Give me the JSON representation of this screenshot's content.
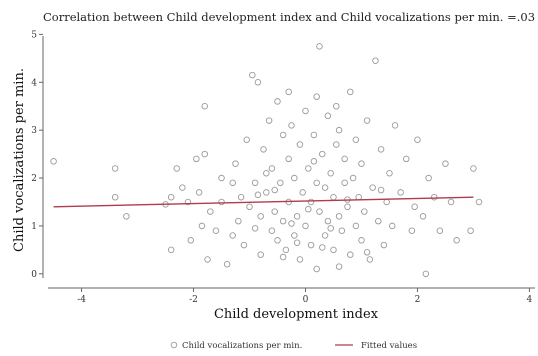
{
  "chart_data": {
    "type": "scatter",
    "title": "Correlation between Child development index and Child vocalizations per min. =.03",
    "xlabel": "Child development index",
    "ylabel": "Child vocalizations per min.",
    "xlim": [
      -4.6,
      4.1
    ],
    "ylim": [
      -0.15,
      5.05
    ],
    "x_ticks": [
      -4,
      -2,
      0,
      2,
      4
    ],
    "y_ticks": [
      0,
      1,
      2,
      3,
      4,
      5
    ],
    "grid": false,
    "legend_position": "bottom",
    "series": [
      {
        "name": "Child vocalizations per min.",
        "kind": "scatter",
        "marker": "hollow-circle",
        "color": "#9a9a9a",
        "points": [
          [
            -4.5,
            2.35
          ],
          [
            -3.4,
            1.6
          ],
          [
            -3.4,
            2.2
          ],
          [
            -3.2,
            1.2
          ],
          [
            -2.5,
            1.45
          ],
          [
            -2.4,
            1.6
          ],
          [
            -2.4,
            0.5
          ],
          [
            -2.3,
            2.2
          ],
          [
            -2.2,
            1.8
          ],
          [
            -2.1,
            1.5
          ],
          [
            -2.05,
            0.7
          ],
          [
            -1.95,
            2.4
          ],
          [
            -1.9,
            1.7
          ],
          [
            -1.85,
            1.0
          ],
          [
            -1.8,
            2.5
          ],
          [
            -1.8,
            3.5
          ],
          [
            -1.75,
            0.3
          ],
          [
            -1.7,
            1.3
          ],
          [
            -1.6,
            0.9
          ],
          [
            -1.5,
            2.0
          ],
          [
            -1.5,
            1.5
          ],
          [
            -1.4,
            0.2
          ],
          [
            -1.3,
            0.8
          ],
          [
            -1.25,
            2.3
          ],
          [
            -1.2,
            1.1
          ],
          [
            -1.15,
            1.6
          ],
          [
            -1.1,
            0.6
          ],
          [
            -1.05,
            2.8
          ],
          [
            -1.0,
            1.4
          ],
          [
            -0.95,
            4.15
          ],
          [
            -0.9,
            1.9
          ],
          [
            -0.85,
            4.0
          ],
          [
            -0.8,
            1.2
          ],
          [
            -0.8,
            0.4
          ],
          [
            -0.75,
            2.6
          ],
          [
            -0.7,
            1.7
          ],
          [
            -0.65,
            3.2
          ],
          [
            -0.6,
            0.9
          ],
          [
            -0.6,
            2.2
          ],
          [
            -0.55,
            1.3
          ],
          [
            -0.5,
            3.6
          ],
          [
            -0.5,
            0.7
          ],
          [
            -0.45,
            1.9
          ],
          [
            -0.4,
            2.9
          ],
          [
            -0.4,
            1.1
          ],
          [
            -0.35,
            0.5
          ],
          [
            -0.3,
            2.4
          ],
          [
            -0.3,
            1.5
          ],
          [
            -0.25,
            3.1
          ],
          [
            -0.2,
            0.8
          ],
          [
            -0.2,
            2.0
          ],
          [
            -0.15,
            1.2
          ],
          [
            -0.1,
            2.7
          ],
          [
            -0.1,
            0.3
          ],
          [
            -0.05,
            1.7
          ],
          [
            0.0,
            3.4
          ],
          [
            0.0,
            1.0
          ],
          [
            0.05,
            2.2
          ],
          [
            0.1,
            0.6
          ],
          [
            0.1,
            1.5
          ],
          [
            0.15,
            2.9
          ],
          [
            0.2,
            1.9
          ],
          [
            0.2,
            0.1
          ],
          [
            0.25,
            4.75
          ],
          [
            0.25,
            1.3
          ],
          [
            0.3,
            2.5
          ],
          [
            0.35,
            0.8
          ],
          [
            0.35,
            1.8
          ],
          [
            0.4,
            3.3
          ],
          [
            0.4,
            1.1
          ],
          [
            0.45,
            2.1
          ],
          [
            0.5,
            0.5
          ],
          [
            0.5,
            1.6
          ],
          [
            0.55,
            2.7
          ],
          [
            0.6,
            1.2
          ],
          [
            0.6,
            3.0
          ],
          [
            0.65,
            0.9
          ],
          [
            0.7,
            1.9
          ],
          [
            0.7,
            2.4
          ],
          [
            0.75,
            1.4
          ],
          [
            0.8,
            3.8
          ],
          [
            0.8,
            0.4
          ],
          [
            0.85,
            2.0
          ],
          [
            0.9,
            1.0
          ],
          [
            0.9,
            2.8
          ],
          [
            0.95,
            1.6
          ],
          [
            1.0,
            0.7
          ],
          [
            1.0,
            2.3
          ],
          [
            1.05,
            1.3
          ],
          [
            1.1,
            3.2
          ],
          [
            1.15,
            0.3
          ],
          [
            1.2,
            1.8
          ],
          [
            1.25,
            4.45
          ],
          [
            1.3,
            1.1
          ],
          [
            1.35,
            2.6
          ],
          [
            1.4,
            0.6
          ],
          [
            1.45,
            1.5
          ],
          [
            1.5,
            2.1
          ],
          [
            1.55,
            1.0
          ],
          [
            1.6,
            3.1
          ],
          [
            1.7,
            1.7
          ],
          [
            1.8,
            2.4
          ],
          [
            1.9,
            0.9
          ],
          [
            1.95,
            1.4
          ],
          [
            2.0,
            2.8
          ],
          [
            2.1,
            1.2
          ],
          [
            2.15,
            0.0
          ],
          [
            2.2,
            2.0
          ],
          [
            2.3,
            1.6
          ],
          [
            2.4,
            0.9
          ],
          [
            2.5,
            2.3
          ],
          [
            2.6,
            1.5
          ],
          [
            2.7,
            0.7
          ],
          [
            2.95,
            0.9
          ],
          [
            3.0,
            2.2
          ],
          [
            3.1,
            1.5
          ],
          [
            -0.9,
            0.95
          ],
          [
            -0.4,
            0.35
          ],
          [
            0.3,
            0.55
          ],
          [
            0.6,
            0.15
          ],
          [
            1.1,
            0.45
          ],
          [
            -0.7,
            2.1
          ],
          [
            0.2,
            3.7
          ],
          [
            -0.3,
            3.8
          ],
          [
            0.55,
            3.5
          ],
          [
            -1.3,
            1.9
          ],
          [
            -0.15,
            0.65
          ],
          [
            0.45,
            0.95
          ],
          [
            1.35,
            1.75
          ],
          [
            -0.55,
            1.75
          ],
          [
            0.05,
            1.35
          ],
          [
            0.15,
            2.35
          ],
          [
            -0.25,
            1.05
          ],
          [
            0.75,
            1.55
          ],
          [
            -0.85,
            1.65
          ]
        ]
      },
      {
        "name": "Fitted values",
        "kind": "line",
        "color": "#b03a4e",
        "points": [
          [
            -4.5,
            1.4
          ],
          [
            3.0,
            1.6
          ]
        ]
      }
    ]
  }
}
